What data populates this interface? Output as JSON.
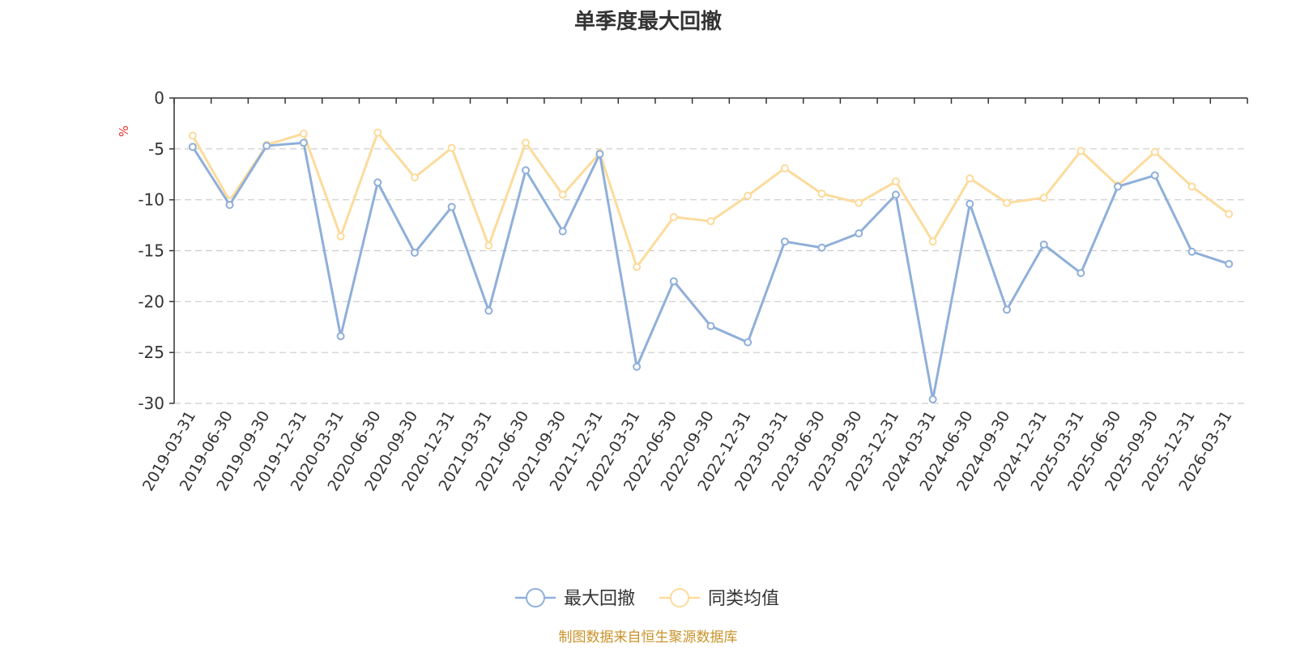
{
  "chart_data": {
    "type": "line",
    "title": "单季度最大回撤",
    "ylabel": "%",
    "xlabel": "",
    "ylim": [
      -30,
      0
    ],
    "yticks": [
      0,
      -5,
      -10,
      -15,
      -20,
      -25,
      -30
    ],
    "grid": true,
    "legend_position": "bottom-center",
    "categories": [
      "2019-03-31",
      "2019-06-30",
      "2019-09-30",
      "2019-12-31",
      "2020-03-31",
      "2020-06-30",
      "2020-09-30",
      "2020-12-31",
      "2021-03-31",
      "2021-06-30",
      "2021-09-30",
      "2021-12-31",
      "2022-03-31",
      "2022-06-30",
      "2022-09-30",
      "2022-12-31",
      "2023-03-31",
      "2023-06-30",
      "2023-09-30",
      "2023-12-31",
      "2024-03-31",
      "2024-06-30",
      "2024-09-30",
      "2024-12-31",
      "2025-03-31",
      "2025-06-30",
      "2025-09-30",
      "2025-12-31",
      "2026-03-31"
    ],
    "series": [
      {
        "name": "最大回撤",
        "color": "#8fafd9",
        "values": [
          -4.8,
          -10.5,
          -4.7,
          -4.4,
          -23.4,
          -8.3,
          -15.2,
          -10.7,
          -20.9,
          -7.1,
          -13.1,
          -5.5,
          -26.4,
          -18.0,
          -22.4,
          -24.0,
          -14.1,
          -14.7,
          -13.3,
          -9.5,
          -29.6,
          -10.4,
          -20.8,
          -14.4,
          -17.2,
          -8.7,
          -7.6,
          -15.1,
          -16.3
        ]
      },
      {
        "name": "同类均值",
        "color": "#fcdb9c",
        "values": [
          -3.7,
          -10.1,
          -4.6,
          -3.5,
          -13.6,
          -3.4,
          -7.8,
          -4.9,
          -14.5,
          -4.4,
          -9.5,
          -5.4,
          -16.6,
          -11.7,
          -12.1,
          -9.6,
          -6.9,
          -9.4,
          -10.3,
          -8.2,
          -14.1,
          -7.9,
          -10.3,
          -9.8,
          -5.2,
          -8.6,
          -5.3,
          -8.7,
          -11.4
        ]
      }
    ]
  },
  "footer": {
    "source_text": "制图数据来自恒生聚源数据库"
  }
}
